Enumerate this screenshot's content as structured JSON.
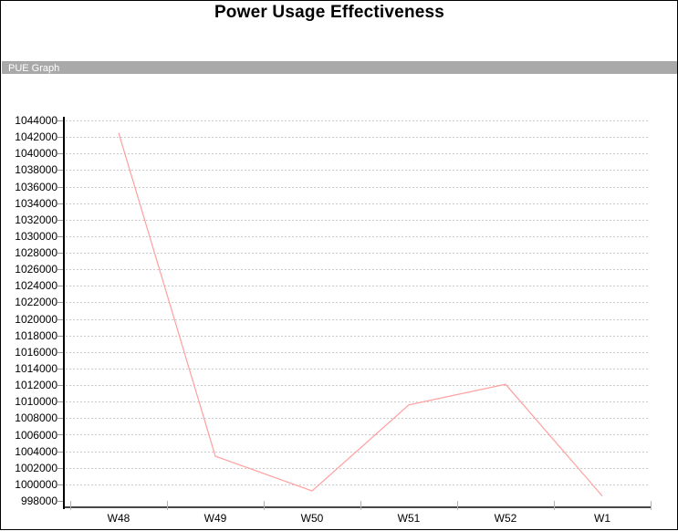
{
  "page": {
    "title": "Power Usage Effectiveness"
  },
  "section_bar": {
    "label": "PUE Graph",
    "background": "#a9a9a9",
    "text_color": "#ffffff"
  },
  "chart_data": {
    "type": "line",
    "title": "Power Usage Effectiveness",
    "categories": [
      "W48",
      "W49",
      "W50",
      "W51",
      "W52",
      "W1"
    ],
    "series": [
      {
        "name": "PUE Graph",
        "color": "#ff9f9f",
        "values": [
          1042500,
          1003400,
          999200,
          1009600,
          1012100,
          998600
        ]
      }
    ],
    "xlabel": "",
    "ylabel": "",
    "ylim": [
      998000,
      1044000
    ],
    "ytick_step": 2000,
    "ytick_labels": [
      "1044000",
      "1042000",
      "1040000",
      "1038000",
      "1036000",
      "1034000",
      "1032000",
      "1030000",
      "1028000",
      "1026000",
      "1024000",
      "1022000",
      "1020000",
      "1018000",
      "1016000",
      "1014000",
      "1012000",
      "1010000",
      "1008000",
      "1006000",
      "1004000",
      "1002000",
      "1000000",
      "998000"
    ],
    "grid": "horizontal-dotted",
    "legend_position": "none",
    "colors": {
      "line": "#ff9f9f",
      "gridline": "#cbcbcb",
      "y_axis": "#000000",
      "x_axis": "#474747",
      "tick": "#9a9a9a",
      "labels": "#000000"
    }
  }
}
